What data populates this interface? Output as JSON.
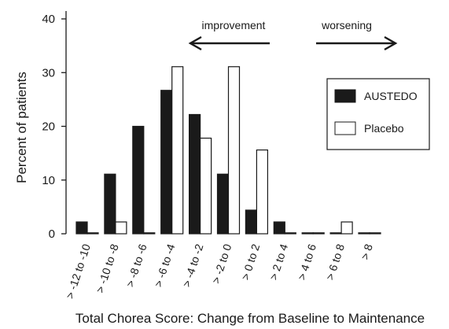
{
  "chart_data": {
    "type": "bar",
    "title": "",
    "xlabel": "Total Chorea Score: Change from Baseline to Maintenance",
    "ylabel": "Percent of patients",
    "ylim": [
      0,
      40
    ],
    "yticks": [
      0,
      10,
      20,
      30,
      40
    ],
    "grid": false,
    "legend_position": "right",
    "categories": [
      "> -12 to -10",
      "> -10 to -8",
      "> -8 to -6",
      "> -6 to -4",
      "> -4 to -2",
      "> -2 to 0",
      "> 0 to 2",
      "> 2 to 4",
      "> 4 to 6",
      "> 6 to 8",
      "> 8"
    ],
    "series": [
      {
        "name": "AUSTEDO",
        "color": "#1a1a1a",
        "values": [
          2.2,
          11.1,
          20.0,
          26.7,
          22.2,
          11.1,
          4.4,
          2.2,
          0,
          0,
          0
        ]
      },
      {
        "name": "Placebo",
        "color": "#ffffff",
        "values": [
          0,
          2.2,
          0,
          31.1,
          17.8,
          31.1,
          15.6,
          0,
          0,
          2.2,
          0
        ]
      }
    ],
    "annotations": {
      "improvement": "improvement",
      "worsening": "worsening"
    }
  }
}
